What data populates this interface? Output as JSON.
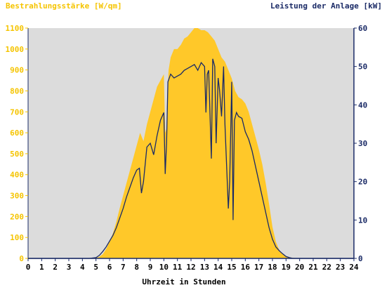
{
  "chart_data": {
    "type": "area",
    "left_axis_title": "Bestrahlungsstärke [W/qm]",
    "right_axis_title": "Leistung der Anlage [kW]",
    "xlabel": "Uhrzeit in Stunden",
    "xlim": [
      0,
      24
    ],
    "ylim_left": [
      0,
      1100
    ],
    "ylim_right": [
      0,
      60
    ],
    "x_ticks": [
      "0",
      "1",
      "2",
      "3",
      "4",
      "5",
      "6",
      "7",
      "8",
      "9",
      "10",
      "11",
      "12",
      "13",
      "14",
      "15",
      "16",
      "17",
      "18",
      "19",
      "20",
      "21",
      "22",
      "23",
      "24"
    ],
    "y_ticks_left": [
      "0",
      "100",
      "200",
      "300",
      "400",
      "500",
      "600",
      "700",
      "800",
      "900",
      "1000",
      "1100"
    ],
    "y_ticks_right": [
      "0",
      "10",
      "20",
      "30",
      "40",
      "50",
      "60"
    ],
    "series": [
      {
        "name": "Bestrahlungsstärke [W/qm]",
        "axis": "left",
        "kind": "area",
        "color": "#ffc829",
        "x": [
          0,
          4.5,
          5,
          5.25,
          5.5,
          5.75,
          6,
          6.25,
          6.5,
          6.75,
          7,
          7.25,
          7.5,
          7.75,
          8,
          8.25,
          8.5,
          8.75,
          9,
          9.25,
          9.5,
          9.75,
          10,
          10.1,
          10.2,
          10.25,
          10.35,
          10.5,
          10.75,
          11,
          11.25,
          11.5,
          11.75,
          12,
          12.25,
          12.5,
          12.75,
          13,
          13.25,
          13.5,
          13.75,
          14,
          14.25,
          14.5,
          14.75,
          15,
          15.25,
          15.5,
          15.75,
          16,
          16.25,
          16.5,
          16.75,
          17,
          17.25,
          17.5,
          17.75,
          18,
          18.25,
          18.5,
          18.75,
          19,
          19.25,
          19.5,
          19.75,
          20,
          20.25,
          24
        ],
        "values": [
          0,
          0,
          2,
          8,
          20,
          45,
          80,
          120,
          175,
          240,
          300,
          360,
          420,
          480,
          540,
          600,
          560,
          640,
          700,
          760,
          820,
          850,
          880,
          600,
          620,
          780,
          900,
          960,
          1000,
          1000,
          1020,
          1050,
          1060,
          1080,
          1100,
          1100,
          1090,
          1090,
          1080,
          1060,
          1040,
          1000,
          960,
          940,
          900,
          860,
          800,
          770,
          760,
          740,
          700,
          640,
          580,
          520,
          450,
          360,
          260,
          150,
          80,
          40,
          20,
          10,
          5,
          3,
          1,
          0,
          0,
          0
        ]
      },
      {
        "name": "Leistung der Anlage [kW]",
        "axis": "right",
        "kind": "line",
        "color": "#1a2a66",
        "x": [
          0,
          4.5,
          5,
          5.25,
          5.5,
          5.75,
          6,
          6.25,
          6.5,
          6.75,
          7,
          7.25,
          7.5,
          7.75,
          8,
          8.2,
          8.35,
          8.5,
          8.75,
          9,
          9.25,
          9.5,
          9.75,
          10,
          10.1,
          10.2,
          10.3,
          10.5,
          10.75,
          11,
          11.25,
          11.5,
          11.75,
          12,
          12.25,
          12.5,
          12.75,
          13,
          13.1,
          13.2,
          13.3,
          13.5,
          13.6,
          13.75,
          13.85,
          14,
          14.1,
          14.25,
          14.4,
          14.5,
          14.75,
          14.85,
          15,
          15.1,
          15.2,
          15.35,
          15.5,
          15.75,
          16,
          16.25,
          16.5,
          16.75,
          17,
          17.25,
          17.5,
          17.75,
          18,
          18.25,
          18.5,
          18.75,
          19,
          19.25,
          19.5,
          19.75,
          20,
          20.25,
          24
        ],
        "values": [
          0,
          0,
          0.2,
          0.8,
          1.8,
          3,
          4.5,
          6,
          8,
          10.5,
          13,
          16,
          18.5,
          21,
          23,
          23.5,
          17,
          20,
          29,
          30,
          27,
          32,
          36,
          38,
          22,
          30,
          46,
          48,
          47,
          47.5,
          48,
          49,
          49.5,
          50,
          50.5,
          49,
          51,
          50,
          38,
          48,
          49,
          26,
          52,
          50,
          30,
          47,
          44,
          37,
          50,
          35,
          13,
          20,
          46,
          10,
          36,
          38,
          37,
          36.5,
          33,
          31,
          28,
          24,
          20,
          16,
          12,
          8,
          5,
          3,
          2,
          1.2,
          0.5,
          0.2,
          0,
          0,
          0,
          0,
          0
        ]
      }
    ],
    "grid": false,
    "legend": "none"
  },
  "colors": {
    "plot_background": "#dcdcdc",
    "irradiance_fill": "#ffc829",
    "power_line": "#1a2a66",
    "left_axis": "#f5c400",
    "right_axis": "#1a2a66"
  }
}
